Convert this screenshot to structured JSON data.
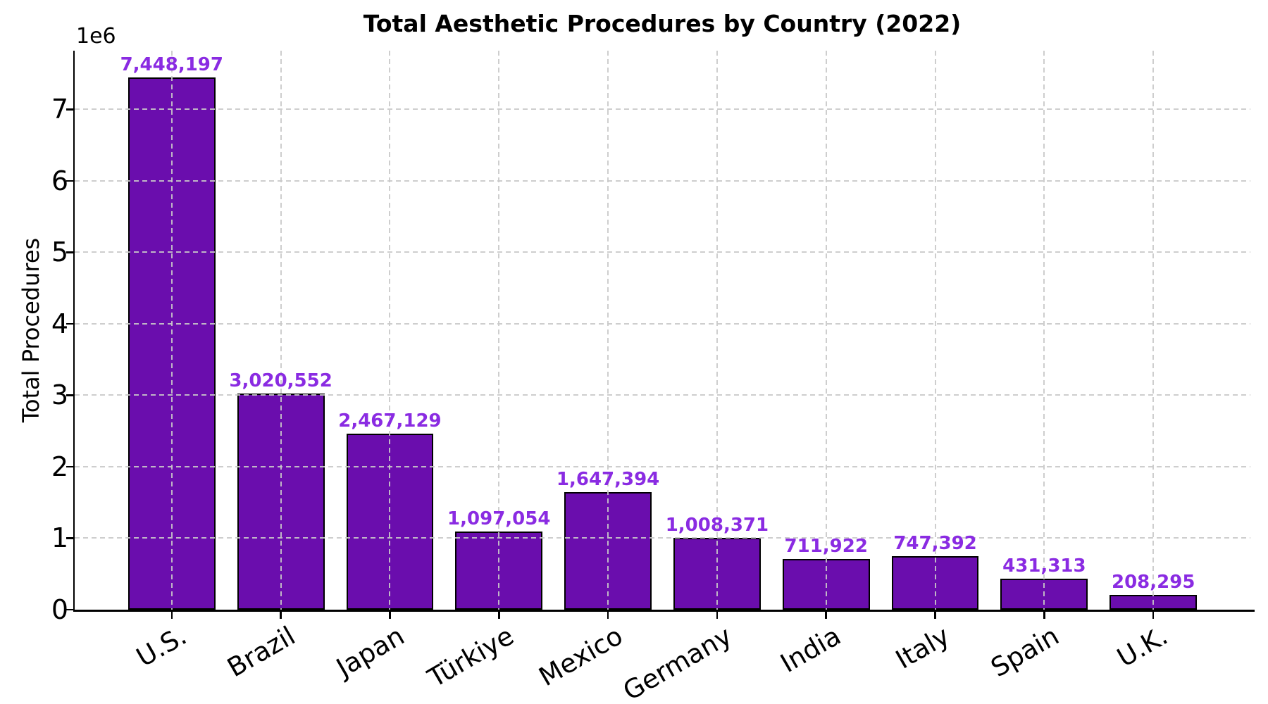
{
  "chart_data": {
    "type": "bar",
    "title": "Total Aesthetic Procedures by Country (2022)",
    "ylabel": "Total Procedures",
    "y_offset_label": "1e6",
    "categories": [
      "U.S.",
      "Brazil",
      "Japan",
      "Türkiye",
      "Mexico",
      "Germany",
      "India",
      "Italy",
      "Spain",
      "U.K."
    ],
    "values": [
      7448197,
      3020552,
      2467129,
      1097054,
      1647394,
      1008371,
      711922,
      747392,
      431313,
      208295
    ],
    "value_labels": [
      "7,448,197",
      "3,020,552",
      "2,467,129",
      "1,097,054",
      "1,647,394",
      "1,008,371",
      "711,922",
      "747,392",
      "431,313",
      "208,295"
    ],
    "ytick_values": [
      0,
      1000000,
      2000000,
      3000000,
      4000000,
      5000000,
      6000000,
      7000000
    ],
    "ytick_labels": [
      "0",
      "1",
      "2",
      "3",
      "4",
      "5",
      "6",
      "7"
    ],
    "ylim": [
      0,
      7820607
    ],
    "grid": true,
    "grid_style": "dashed",
    "legend": false,
    "colors": {
      "bar_fill": "#6A0DAD",
      "bar_edge": "#000000",
      "value_label": "#8A2BE2",
      "grid": "#c9c9c9",
      "axis": "#000000",
      "text": "#000000",
      "background": "#ffffff"
    }
  }
}
